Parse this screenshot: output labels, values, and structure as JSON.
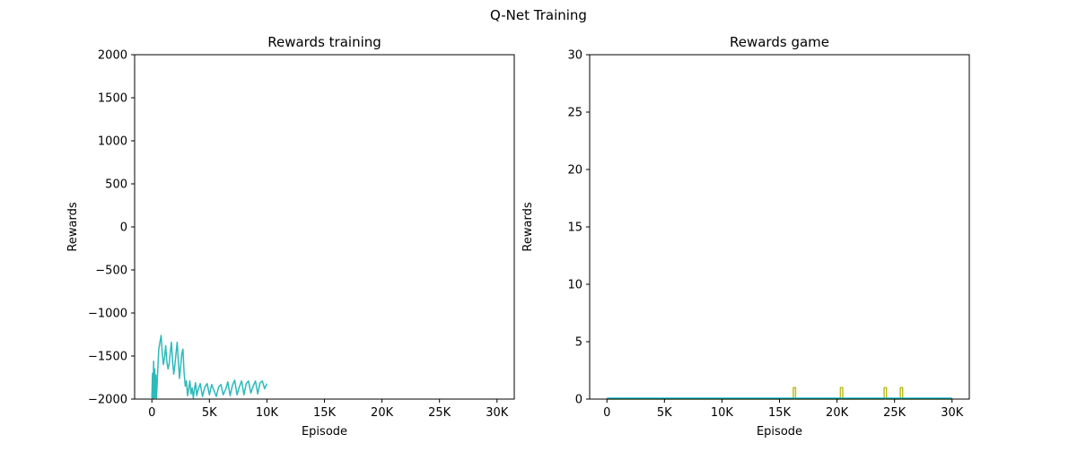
{
  "figure": {
    "suptitle": "Q-Net Training"
  },
  "chart_data": [
    {
      "type": "line",
      "title": "Rewards training",
      "xlabel": "Episode",
      "ylabel": "Rewards",
      "xlim": [
        -1500,
        31500
      ],
      "ylim": [
        -2000,
        2000
      ],
      "x_ticks": [
        0,
        5000,
        10000,
        15000,
        20000,
        25000,
        30000
      ],
      "x_tick_labels": [
        "0",
        "5K",
        "10K",
        "15K",
        "20K",
        "25K",
        "30K"
      ],
      "y_ticks": [
        -2000,
        -1500,
        -1000,
        -500,
        0,
        500,
        1000,
        1500,
        2000
      ],
      "y_tick_labels": [
        "−2000",
        "−1500",
        "−1000",
        "−500",
        "0",
        "500",
        "1000",
        "1500",
        "2000"
      ],
      "grid": false,
      "series": [
        {
          "color": "#2ebaba",
          "x": [
            0,
            50,
            100,
            150,
            200,
            250,
            300,
            350,
            400,
            500,
            600,
            700,
            800,
            900,
            1000,
            1100,
            1200,
            1300,
            1400,
            1500,
            1600,
            1700,
            1800,
            1900,
            2000,
            2100,
            2200,
            2300,
            2400,
            2500,
            2600,
            2700,
            2800,
            2900,
            3000,
            3100,
            3200,
            3300,
            3400,
            3500,
            3600,
            3700,
            3800,
            3900,
            4000,
            4200,
            4400,
            4600,
            4800,
            5000,
            5200,
            5400,
            5600,
            5800,
            6000,
            6200,
            6400,
            6600,
            6800,
            7000,
            7200,
            7400,
            7600,
            7800,
            8000,
            8200,
            8400,
            8600,
            8800,
            9000,
            9200,
            9400,
            9600,
            9800,
            10000
          ],
          "y": [
            -1990,
            -1700,
            -1990,
            -1560,
            -1990,
            -1650,
            -1980,
            -1720,
            -1990,
            -1700,
            -1420,
            -1340,
            -1260,
            -1470,
            -1600,
            -1520,
            -1380,
            -1560,
            -1650,
            -1590,
            -1460,
            -1340,
            -1560,
            -1710,
            -1600,
            -1470,
            -1340,
            -1560,
            -1760,
            -1620,
            -1470,
            -1420,
            -1690,
            -1850,
            -1790,
            -1960,
            -1880,
            -1790,
            -1940,
            -1870,
            -1990,
            -1880,
            -1810,
            -1960,
            -1900,
            -1820,
            -1970,
            -1860,
            -1820,
            -1950,
            -1830,
            -1900,
            -1970,
            -1860,
            -1830,
            -1950,
            -1890,
            -1800,
            -1960,
            -1840,
            -1780,
            -1950,
            -1860,
            -1790,
            -1950,
            -1820,
            -1790,
            -1930,
            -1850,
            -1790,
            -1940,
            -1810,
            -1790,
            -1880,
            -1820
          ]
        }
      ]
    },
    {
      "type": "line",
      "title": "Rewards game",
      "xlabel": "Episode",
      "ylabel": "Rewards",
      "xlim": [
        -1500,
        31500
      ],
      "ylim": [
        0,
        30
      ],
      "x_ticks": [
        0,
        5000,
        10000,
        15000,
        20000,
        25000,
        30000
      ],
      "x_tick_labels": [
        "0",
        "5K",
        "10K",
        "15K",
        "20K",
        "25K",
        "30K"
      ],
      "y_ticks": [
        0,
        5,
        10,
        15,
        20,
        25,
        30
      ],
      "y_tick_labels": [
        "0",
        "5",
        "10",
        "15",
        "20",
        "25",
        "30"
      ],
      "grid": false,
      "series": [
        {
          "color": "#bcbd22",
          "x": [
            0,
            16200,
            16200,
            16400,
            16400,
            20300,
            20300,
            20500,
            20500,
            24100,
            24100,
            24300,
            24300,
            25500,
            25500,
            25700,
            25700,
            30000
          ],
          "y": [
            0,
            0,
            1,
            1,
            0,
            0,
            1,
            1,
            0,
            0,
            1,
            1,
            0,
            0,
            1,
            1,
            0,
            0
          ]
        },
        {
          "color": "#17becf",
          "x": [
            0,
            30000
          ],
          "y": [
            0.08,
            0.08
          ]
        }
      ]
    }
  ]
}
